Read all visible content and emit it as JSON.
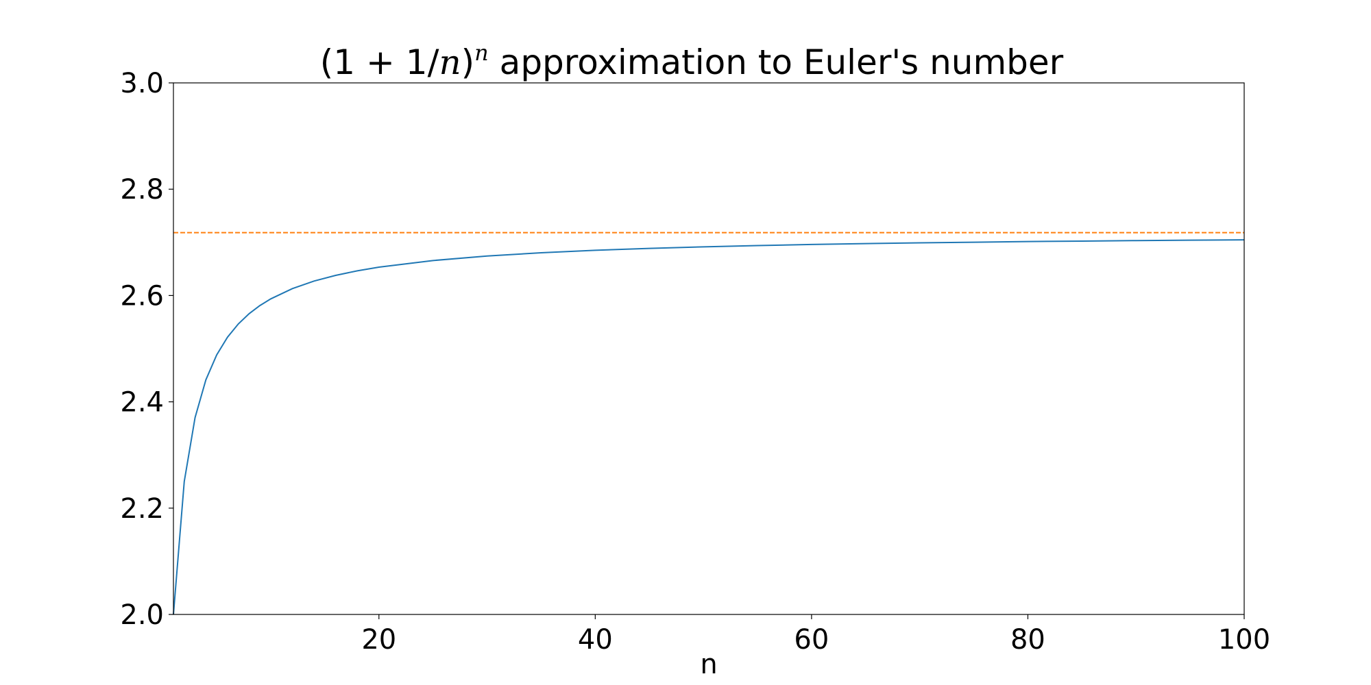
{
  "chart_data": {
    "type": "line",
    "title": {
      "math_open": "(1 + 1/",
      "math_var": "n",
      "math_close": ")",
      "math_sup": "n",
      "text": " approximation to Euler's number"
    },
    "xlabel": "n",
    "ylabel": "",
    "xlim": [
      1,
      100
    ],
    "ylim": [
      2.0,
      3.0
    ],
    "x_ticks": [
      20,
      40,
      60,
      80,
      100
    ],
    "y_ticks": [
      "2.0",
      "2.2",
      "2.4",
      "2.6",
      "2.8",
      "3.0"
    ],
    "grid": false,
    "series": [
      {
        "style": "solid",
        "color": "#1f77b4",
        "x": [
          1,
          2,
          3,
          4,
          5,
          6,
          7,
          8,
          9,
          10,
          12,
          14,
          16,
          18,
          20,
          25,
          30,
          35,
          40,
          45,
          50,
          55,
          60,
          65,
          70,
          75,
          80,
          85,
          90,
          95,
          100
        ],
        "y": [
          2.0,
          2.25,
          2.3704,
          2.4414,
          2.4883,
          2.5216,
          2.5465,
          2.5658,
          2.5812,
          2.5937,
          2.613,
          2.6272,
          2.6379,
          2.6464,
          2.6533,
          2.6658,
          2.6743,
          2.6804,
          2.6851,
          2.6887,
          2.6916,
          2.694,
          2.696,
          2.6977,
          2.6991,
          2.7003,
          2.7015,
          2.7024,
          2.7033,
          2.7041,
          2.7048
        ]
      },
      {
        "style": "dashed",
        "color": "#ff7f0e",
        "x": [
          1,
          100
        ],
        "y": [
          2.71828,
          2.71828
        ]
      }
    ]
  }
}
